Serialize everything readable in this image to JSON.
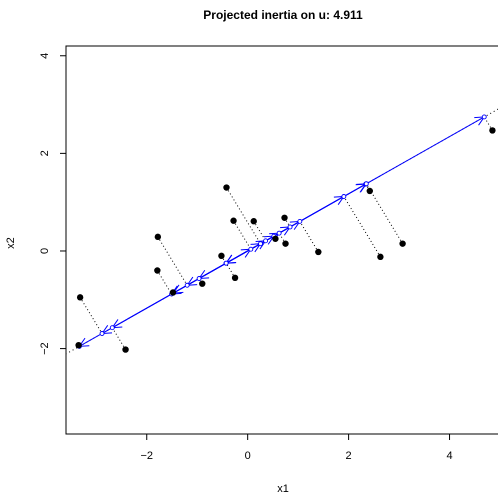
{
  "chart_data": {
    "type": "scatter",
    "title": "Projected inertia on u:  4.911",
    "xlabel": "x1",
    "ylabel": "x2",
    "xlim": [
      -3.6,
      5.0
    ],
    "ylim": [
      -3.75,
      4.2
    ],
    "x_ticks": [
      -2,
      0,
      2,
      4
    ],
    "y_ticks": [
      -2,
      0,
      2,
      4
    ],
    "grid": false,
    "direction_u": [
      0.8628,
      0.5055
    ],
    "colors": {
      "points": "#000000",
      "projection_lines": "#000000",
      "axis_line": "#000000",
      "vectors": "#0000ff"
    },
    "points": [
      {
        "x": -3.32,
        "y": -0.95
      },
      {
        "x": -2.42,
        "y": -2.02
      },
      {
        "x": -1.78,
        "y": 0.29
      },
      {
        "x": -1.79,
        "y": -0.4
      },
      {
        "x": -1.48,
        "y": -0.85
      },
      {
        "x": -0.9,
        "y": -0.67
      },
      {
        "x": -0.52,
        "y": -0.1
      },
      {
        "x": -0.42,
        "y": 1.3
      },
      {
        "x": -0.28,
        "y": 0.62
      },
      {
        "x": -0.25,
        "y": -0.55
      },
      {
        "x": 0.12,
        "y": 0.61
      },
      {
        "x": 0.55,
        "y": 0.25
      },
      {
        "x": 0.73,
        "y": 0.68
      },
      {
        "x": 0.75,
        "y": 0.15
      },
      {
        "x": 1.4,
        "y": -0.02
      },
      {
        "x": 2.42,
        "y": 1.23
      },
      {
        "x": 2.63,
        "y": -0.12
      },
      {
        "x": 3.07,
        "y": 0.15
      },
      {
        "x": 4.85,
        "y": 2.47
      },
      {
        "x": -3.35,
        "y": -1.93
      }
    ]
  }
}
